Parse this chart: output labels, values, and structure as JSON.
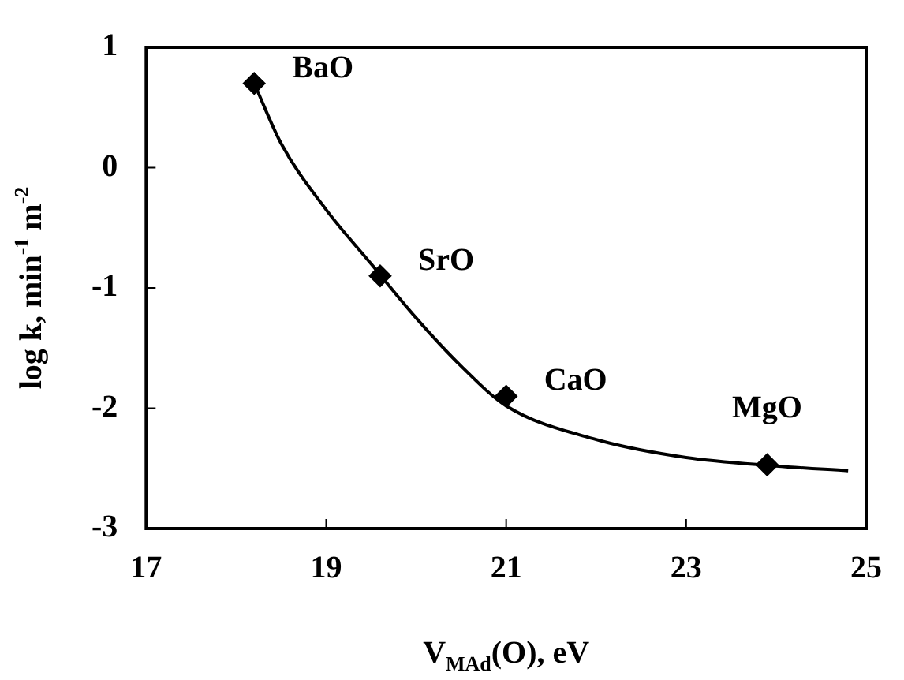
{
  "chart_data": {
    "type": "scatter",
    "xlabel": "V$_{MAd}$(O), eV",
    "ylabel": "log k, min$^{-1}$ m$^{-2}$",
    "series": [
      {
        "color": "#000000",
        "marker": "diamond",
        "x": [
          18.2,
          19.6,
          21.0,
          23.9
        ],
        "values": [
          0.7,
          -0.9,
          -1.9,
          -2.47
        ]
      },
      {
        "type": "line",
        "color": "#000000",
        "marker": "none",
        "x": [
          18.2,
          18.5,
          19.0,
          19.5,
          20.0,
          20.5,
          21.0,
          22.0,
          23.0,
          24.0,
          24.8
        ],
        "values": [
          0.7,
          0.2,
          -0.35,
          -0.8,
          -1.25,
          -1.65,
          -1.98,
          -2.26,
          -2.41,
          -2.48,
          -2.52
        ]
      }
    ],
    "annotations": [
      {
        "text": "BaO",
        "x": 18.2,
        "y": 0.7
      },
      {
        "text": "SrO",
        "x": 19.6,
        "y": -0.9
      },
      {
        "text": "CaO",
        "x": 21.0,
        "y": -1.9
      },
      {
        "text": "MgO",
        "x": 23.9,
        "y": -2.47
      }
    ],
    "xlim": [
      17,
      25
    ],
    "xticks": [
      17,
      19,
      21,
      23,
      25
    ],
    "ylim": [
      -3,
      1
    ],
    "yticks": [
      -3,
      -2,
      -1,
      0,
      1
    ],
    "grid": false,
    "legend": false
  }
}
